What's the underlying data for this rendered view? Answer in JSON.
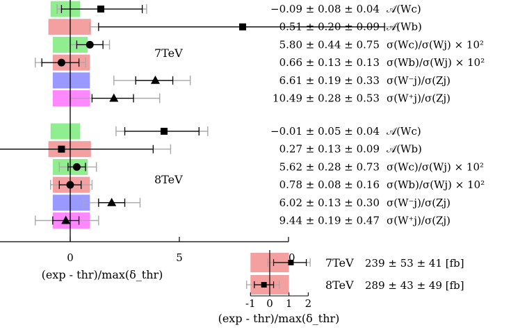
{
  "chart_data": [
    {
      "type": "scatter",
      "xlabel": "(exp - thr)/max(δ_thr)",
      "xlim": [
        -5,
        10
      ],
      "xticks": [
        "-5",
        "0",
        "5",
        "10"
      ],
      "groups": [
        {
          "energy": "7TeV",
          "rows": [
            {
              "measurement": "−0.09 ± 0.08 ± 0.04",
              "observable": "𝒜(Wc)",
              "marker": "square",
              "band_color": "#90ee90",
              "band": [
                -0.9,
                0.45
              ],
              "x": 1.4,
              "err_stat": [
                -0.4,
                3.3
              ],
              "err_tot": [
                -0.6,
                3.5
              ]
            },
            {
              "measurement": "0.51 ± 0.20 ± 0.09",
              "observable": "𝒜(Wb)",
              "marker": "square",
              "band_color": "#f4a0a0",
              "band": [
                -1.0,
                0.95
              ],
              "x": 7.9,
              "err_stat": [
                1.3,
                14.4
              ],
              "err_tot": [
                0.9,
                15.0
              ]
            },
            {
              "measurement": "5.80 ± 0.44 ± 0.75",
              "observable": "σ(Wc)/σ(Wj) × 10²",
              "marker": "circle",
              "band_color": "#90ee90",
              "band": [
                -0.8,
                0.8
              ],
              "x": 0.9,
              "err_stat": [
                0.3,
                1.5
              ],
              "err_tot": [
                0.0,
                1.8
              ]
            },
            {
              "measurement": "0.66 ± 0.13 ± 0.13",
              "observable": "σ(Wb)/σ(Wj) × 10²",
              "marker": "circle",
              "band_color": "#f4a0a0",
              "band": [
                -0.8,
                0.9
              ],
              "x": -0.4,
              "err_stat": [
                -1.3,
                0.4
              ],
              "err_tot": [
                -1.6,
                0.7
              ]
            },
            {
              "measurement": "6.61 ± 0.19 ± 0.33",
              "observable": "σ(W⁻j)/σ(Zj)",
              "marker": "triangle",
              "band_color": "#9999ff",
              "band": [
                -0.8,
                0.9
              ],
              "x": 3.9,
              "err_stat": [
                3.0,
                4.7
              ],
              "err_tot": [
                2.0,
                5.5
              ]
            },
            {
              "measurement": "10.49 ± 0.28 ± 0.53",
              "observable": "σ(W⁺j)/σ(Zj)",
              "marker": "triangle",
              "band_color": "#ff88ff",
              "band": [
                -0.8,
                0.9
              ],
              "x": 2.0,
              "err_stat": [
                1.0,
                2.9
              ],
              "err_tot": [
                0.0,
                4.1
              ]
            }
          ]
        },
        {
          "energy": "8TeV",
          "rows": [
            {
              "measurement": "−0.01 ± 0.05 ± 0.04",
              "observable": "𝒜(Wc)",
              "marker": "square",
              "band_color": "#90ee90",
              "band": [
                -0.9,
                0.45
              ],
              "x": 4.3,
              "err_stat": [
                2.5,
                5.9
              ],
              "err_tot": [
                2.1,
                6.3
              ]
            },
            {
              "measurement": "0.27 ± 0.13 ± 0.09",
              "observable": "𝒜(Wb)",
              "marker": "square",
              "band_color": "#f4a0a0",
              "band": [
                -1.0,
                0.95
              ],
              "x": -0.4,
              "err_stat": [
                -4.6,
                3.8
              ],
              "err_tot": [
                -5.5,
                4.6
              ]
            },
            {
              "measurement": "5.62 ± 0.28 ± 0.73",
              "observable": "σ(Wc)/σ(Wj) × 10²",
              "marker": "circle",
              "band_color": "#90ee90",
              "band": [
                -0.8,
                0.8
              ],
              "x": 0.3,
              "err_stat": [
                -0.1,
                0.7
              ],
              "err_tot": [
                -0.5,
                1.2
              ]
            },
            {
              "measurement": "0.78 ± 0.08 ± 0.16",
              "observable": "σ(Wb)/σ(Wj) × 10²",
              "marker": "circle",
              "band_color": "#f4a0a0",
              "band": [
                -0.8,
                0.9
              ],
              "x": 0.0,
              "err_stat": [
                -0.5,
                0.5
              ],
              "err_tot": [
                -0.9,
                1.0
              ]
            },
            {
              "measurement": "6.02 ± 0.13 ± 0.30",
              "observable": "σ(W⁻j)/σ(Zj)",
              "marker": "triangle",
              "band_color": "#9999ff",
              "band": [
                -0.8,
                0.9
              ],
              "x": 1.9,
              "err_stat": [
                1.3,
                2.5
              ],
              "err_tot": [
                0.6,
                3.2
              ]
            },
            {
              "measurement": "9.44 ± 0.19 ± 0.47",
              "observable": "σ(W⁺j)/σ(Zj)",
              "marker": "triangle",
              "band_color": "#ff88ff",
              "band": [
                -0.8,
                0.9
              ],
              "x": -0.2,
              "err_stat": [
                -0.8,
                0.4
              ],
              "err_tot": [
                -1.6,
                1.3
              ]
            }
          ]
        }
      ]
    },
    {
      "type": "scatter",
      "xlabel": "(exp - thr)/max(δ_thr)",
      "xlim": [
        -1,
        2
      ],
      "xticks": [
        "-1",
        "0",
        "1",
        "2"
      ],
      "rows": [
        {
          "energy": "7TeV",
          "measurement": "239 ± 53 ± 41 [fb]",
          "marker": "square",
          "band_color": "#f4a0a0",
          "band": [
            -1.0,
            1.0
          ],
          "x": 1.1,
          "err_stat": [
            0.2,
            1.9
          ],
          "err_tot": [
            -0.1,
            2.1
          ]
        },
        {
          "energy": "8TeV",
          "measurement": "289 ± 43 ± 49 [fb]",
          "marker": "square",
          "band_color": "#f4a0a0",
          "band": [
            -1.0,
            1.0
          ],
          "x": -0.3,
          "err_stat": [
            -0.8,
            0.2
          ],
          "err_tot": [
            -1.2,
            0.5
          ]
        }
      ]
    }
  ]
}
